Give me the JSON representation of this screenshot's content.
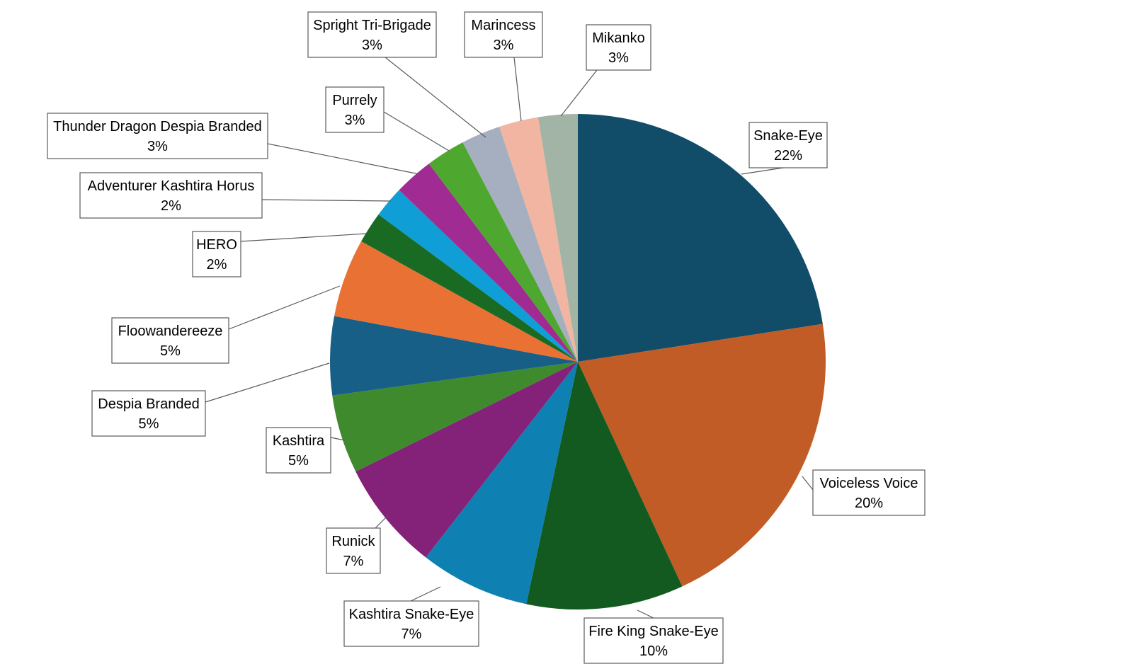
{
  "chart_data": {
    "type": "pie",
    "title": "",
    "start_angle_deg": 0,
    "direction": "clockwise",
    "slices": [
      {
        "label": "Snake-Eye",
        "value": 22,
        "value_label": "22%",
        "color": "#114c69"
      },
      {
        "label": "Voiceless Voice",
        "value": 20,
        "value_label": "20%",
        "color": "#c15c26"
      },
      {
        "label": "Fire King Snake-Eye",
        "value": 10,
        "value_label": "10%",
        "color": "#135a21"
      },
      {
        "label": "Kashtira Snake-Eye",
        "value": 7,
        "value_label": "7%",
        "color": "#0e80b2"
      },
      {
        "label": "Runick",
        "value": 7,
        "value_label": "7%",
        "color": "#842178"
      },
      {
        "label": "Kashtira",
        "value": 5,
        "value_label": "5%",
        "color": "#3f8a2c"
      },
      {
        "label": "Despia Branded",
        "value": 5,
        "value_label": "5%",
        "color": "#185f87"
      },
      {
        "label": "Floowandereeze",
        "value": 5,
        "value_label": "5%",
        "color": "#e97133"
      },
      {
        "label": "HERO",
        "value": 2,
        "value_label": "2%",
        "color": "#196b24"
      },
      {
        "label": "Adventurer Kashtira Horus",
        "value": 2,
        "value_label": "2%",
        "color": "#0f9ed5"
      },
      {
        "label": "Thunder Dragon Despia Branded",
        "value": 2.5,
        "value_label": "3%",
        "color": "#a02b93"
      },
      {
        "label": "Purrely",
        "value": 2.5,
        "value_label": "3%",
        "color": "#4ea72e"
      },
      {
        "label": "Spright Tri-Brigade",
        "value": 2.5,
        "value_label": "3%",
        "color": "#a5afbf"
      },
      {
        "label": "Marincess",
        "value": 2.5,
        "value_label": "3%",
        "color": "#f2b5a1"
      },
      {
        "label": "Mikanko",
        "value": 2.5,
        "value_label": "3%",
        "color": "#a2b4a5"
      }
    ]
  }
}
